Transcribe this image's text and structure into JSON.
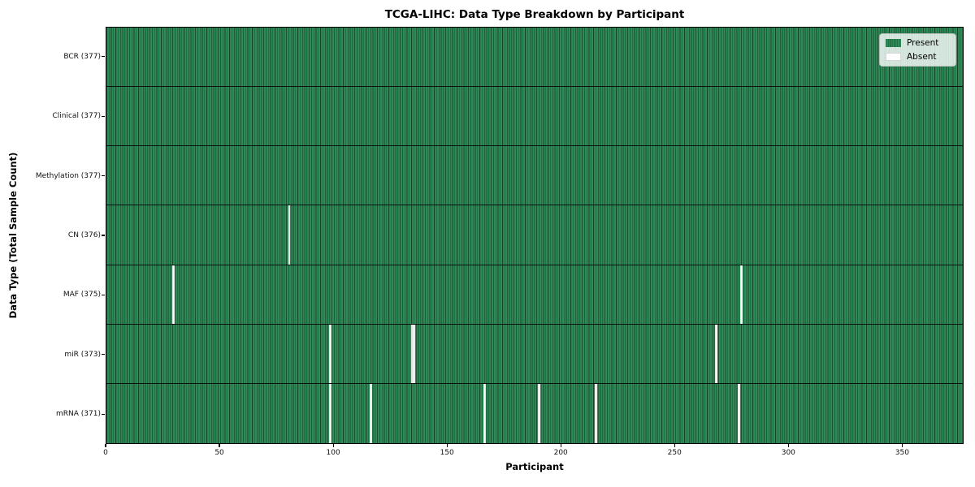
{
  "title": "TCGA-LIHC: Data Type Breakdown by Participant",
  "x_axis_label": "Participant",
  "y_axis_label": "Data Type (Total Sample Count)",
  "colors": {
    "present": "#2e8b57",
    "absent": "#ffffff",
    "cell_edge": "#1b4f31",
    "axis": "#000000",
    "legend_border": "#b9bfb9"
  },
  "legend": {
    "entries": [
      {
        "label": "Present",
        "color": "#2e8b57"
      },
      {
        "label": "Absent",
        "color": "#ffffff"
      }
    ],
    "position": "upper right"
  },
  "chart_data": {
    "type": "heatmap",
    "title": "TCGA-LIHC: Data Type Breakdown by Participant",
    "xlabel": "Participant",
    "ylabel": "Data Type (Total Sample Count)",
    "x_range": [
      0,
      377
    ],
    "x_ticks": [
      0,
      50,
      100,
      150,
      200,
      250,
      300,
      350
    ],
    "n_participants": 377,
    "cell_states": [
      "Present",
      "Absent"
    ],
    "rows": [
      {
        "label": "BCR (377)",
        "data_type": "BCR",
        "present_count": 377,
        "absent_participants": []
      },
      {
        "label": "Clinical (377)",
        "data_type": "Clinical",
        "present_count": 377,
        "absent_participants": []
      },
      {
        "label": "Methylation (377)",
        "data_type": "Methylation",
        "present_count": 377,
        "absent_participants": []
      },
      {
        "label": "CN (376)",
        "data_type": "CN",
        "present_count": 376,
        "absent_participants": [
          80
        ]
      },
      {
        "label": "MAF (375)",
        "data_type": "MAF",
        "present_count": 375,
        "absent_participants": [
          29,
          279
        ]
      },
      {
        "label": "miR (373)",
        "data_type": "miR",
        "present_count": 373,
        "absent_participants": [
          98,
          134,
          135,
          268
        ]
      },
      {
        "label": "mRNA (371)",
        "data_type": "mRNA",
        "present_count": 371,
        "absent_participants": [
          98,
          116,
          166,
          190,
          215,
          278
        ]
      }
    ],
    "legend_entries": [
      "Present",
      "Absent"
    ],
    "grid": "row dividers only",
    "legend_position": "upper right"
  }
}
